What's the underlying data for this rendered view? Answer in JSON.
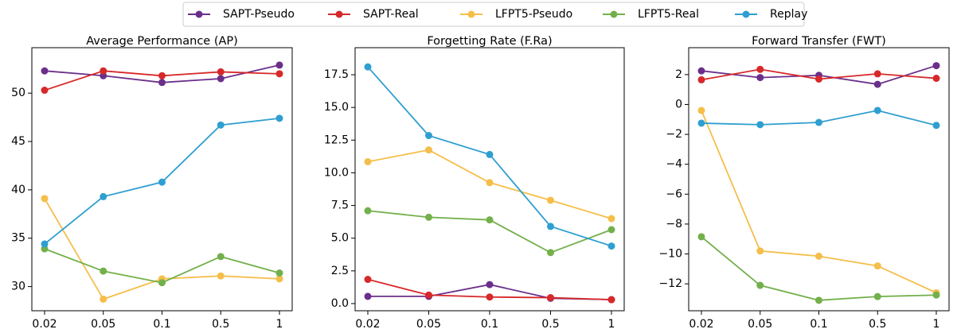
{
  "legend": [
    {
      "name": "SAPT-Pseudo",
      "color": "#6b2f8a"
    },
    {
      "name": "SAPT-Real",
      "color": "#d7282a"
    },
    {
      "name": "LFPT5-Pseudo",
      "color": "#f5be4a"
    },
    {
      "name": "LFPT5-Real",
      "color": "#73b04b"
    },
    {
      "name": "Replay",
      "color": "#2e9fd0"
    }
  ],
  "chart_data": [
    {
      "type": "line",
      "title": "Average Performance (AP)",
      "categories": [
        "0.02",
        "0.05",
        "0.1",
        "0.5",
        "1"
      ],
      "ylim": [
        27.5,
        54.7
      ],
      "yticks": [
        30,
        35,
        40,
        45,
        50
      ],
      "series": [
        {
          "values": [
            52.3,
            51.8,
            51.1,
            51.5,
            52.9
          ]
        },
        {
          "values": [
            50.3,
            52.3,
            51.8,
            52.2,
            52.0
          ]
        },
        {
          "values": [
            39.1,
            28.7,
            30.8,
            31.1,
            30.8
          ]
        },
        {
          "values": [
            33.9,
            31.6,
            30.4,
            33.1,
            31.4
          ]
        },
        {
          "values": [
            34.4,
            39.3,
            40.8,
            46.7,
            47.4
          ]
        }
      ]
    },
    {
      "type": "line",
      "title": "Forgetting Rate (F.Ra)",
      "categories": [
        "0.02",
        "0.05",
        "0.1",
        "0.5",
        "1"
      ],
      "ylim": [
        -0.55,
        19.57
      ],
      "yticks": [
        {
          "value": 0,
          "label": "0.0"
        },
        2.5,
        {
          "value": 5,
          "label": "5.0"
        },
        7.5,
        {
          "value": 10,
          "label": "10.0"
        },
        12.5,
        {
          "value": 15,
          "label": "15.0"
        },
        17.5
      ],
      "series": [
        {
          "values": [
            0.55,
            0.55,
            1.45,
            0.4,
            0.3
          ]
        },
        {
          "values": [
            1.85,
            0.65,
            0.5,
            0.45,
            0.3
          ]
        },
        {
          "values": [
            10.85,
            11.75,
            9.25,
            7.9,
            6.5
          ]
        },
        {
          "values": [
            7.1,
            6.6,
            6.4,
            3.9,
            5.65
          ]
        },
        {
          "values": [
            18.1,
            12.85,
            11.4,
            5.9,
            4.4
          ]
        }
      ]
    },
    {
      "type": "line",
      "title": "Forward Transfer (FWT)",
      "categories": [
        "0.02",
        "0.05",
        "0.1",
        "0.5",
        "1"
      ],
      "ylim": [
        -13.8,
        3.8
      ],
      "yticks": [
        {
          "value": -12,
          "label": "−12"
        },
        {
          "value": -10,
          "label": "−10"
        },
        {
          "value": -8,
          "label": "−8"
        },
        {
          "value": -6,
          "label": "−6"
        },
        {
          "value": -4,
          "label": "−4"
        },
        {
          "value": -2,
          "label": "−2"
        },
        0,
        2
      ],
      "series": [
        {
          "values": [
            2.25,
            1.8,
            1.95,
            1.35,
            2.6
          ]
        },
        {
          "values": [
            1.65,
            2.35,
            1.7,
            2.05,
            1.75
          ]
        },
        {
          "values": [
            -0.4,
            -9.8,
            -10.15,
            -10.8,
            -12.6
          ]
        },
        {
          "values": [
            -8.85,
            -12.1,
            -13.1,
            -12.85,
            -12.75
          ]
        },
        {
          "values": [
            -1.25,
            -1.35,
            -1.2,
            -0.4,
            -1.4
          ]
        }
      ]
    }
  ]
}
